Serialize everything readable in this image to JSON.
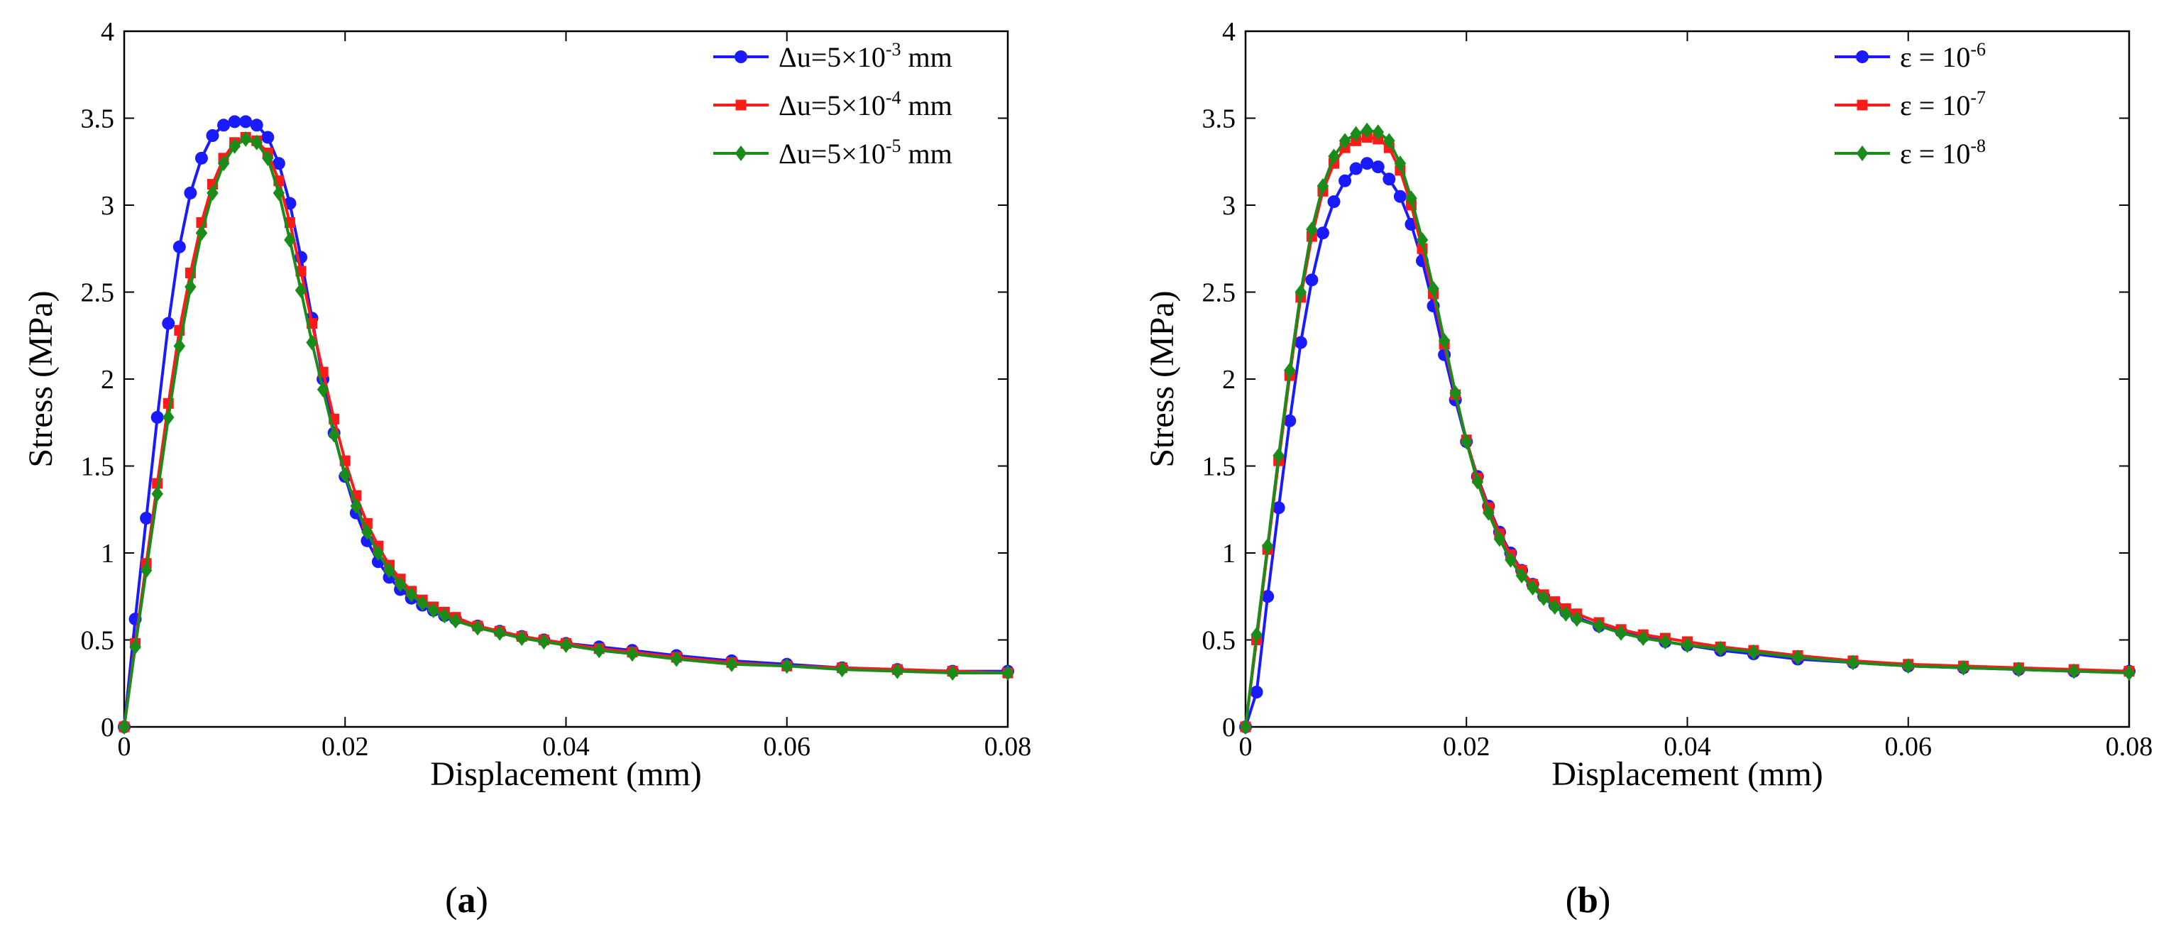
{
  "chart_data": [
    {
      "type": "line",
      "panel_label": "a",
      "xlabel": "Displacement (mm)",
      "ylabel": "Stress (MPa)",
      "xlim": [
        0,
        0.08
      ],
      "ylim": [
        0,
        4
      ],
      "xticks": [
        0,
        0.02,
        0.04,
        0.06,
        0.08
      ],
      "xtick_labels": [
        "0",
        "0.02",
        "0.04",
        "0.06",
        "0.08"
      ],
      "yticks": [
        0,
        0.5,
        1,
        1.5,
        2,
        2.5,
        3,
        3.5,
        4
      ],
      "ytick_labels": [
        "0",
        "0.5",
        "1",
        "1.5",
        "2",
        "2.5",
        "3",
        "3.5",
        "4"
      ],
      "grid": false,
      "legend_position": "top-right",
      "series": [
        {
          "name_base": "Δu=5×10",
          "name_exp": "-3",
          "name_unit": " mm",
          "color": "#1a1aff",
          "marker": "circle",
          "x": [
            0,
            0.001,
            0.002,
            0.003,
            0.004,
            0.005,
            0.006,
            0.007,
            0.008,
            0.009,
            0.01,
            0.011,
            0.012,
            0.013,
            0.014,
            0.015,
            0.016,
            0.017,
            0.018,
            0.019,
            0.02,
            0.021,
            0.022,
            0.023,
            0.024,
            0.025,
            0.026,
            0.027,
            0.028,
            0.029,
            0.03,
            0.032,
            0.034,
            0.036,
            0.038,
            0.04,
            0.043,
            0.046,
            0.05,
            0.055,
            0.06,
            0.065,
            0.07,
            0.075,
            0.08
          ],
          "y": [
            0,
            0.62,
            1.2,
            1.78,
            2.32,
            2.76,
            3.07,
            3.27,
            3.4,
            3.46,
            3.48,
            3.48,
            3.46,
            3.39,
            3.24,
            3.01,
            2.7,
            2.35,
            2.0,
            1.69,
            1.44,
            1.23,
            1.07,
            0.95,
            0.86,
            0.79,
            0.74,
            0.7,
            0.67,
            0.64,
            0.62,
            0.58,
            0.55,
            0.52,
            0.5,
            0.48,
            0.46,
            0.44,
            0.41,
            0.38,
            0.36,
            0.34,
            0.33,
            0.32,
            0.32
          ]
        },
        {
          "name_base": "Δu=5×10",
          "name_exp": "-4",
          "name_unit": " mm",
          "color": "#ff1a1a",
          "marker": "square",
          "x": [
            0,
            0.001,
            0.002,
            0.003,
            0.004,
            0.005,
            0.006,
            0.007,
            0.008,
            0.009,
            0.01,
            0.011,
            0.012,
            0.013,
            0.014,
            0.015,
            0.016,
            0.017,
            0.018,
            0.019,
            0.02,
            0.021,
            0.022,
            0.023,
            0.024,
            0.025,
            0.026,
            0.027,
            0.028,
            0.029,
            0.03,
            0.032,
            0.034,
            0.036,
            0.038,
            0.04,
            0.043,
            0.046,
            0.05,
            0.055,
            0.06,
            0.065,
            0.07,
            0.075,
            0.08
          ],
          "y": [
            0,
            0.48,
            0.94,
            1.4,
            1.86,
            2.28,
            2.61,
            2.9,
            3.12,
            3.27,
            3.36,
            3.39,
            3.37,
            3.3,
            3.14,
            2.9,
            2.62,
            2.32,
            2.04,
            1.77,
            1.53,
            1.33,
            1.17,
            1.04,
            0.93,
            0.85,
            0.78,
            0.73,
            0.69,
            0.66,
            0.63,
            0.58,
            0.55,
            0.52,
            0.5,
            0.48,
            0.45,
            0.43,
            0.4,
            0.37,
            0.35,
            0.34,
            0.33,
            0.32,
            0.31
          ]
        },
        {
          "name_base": "Δu=5×10",
          "name_exp": "-5",
          "name_unit": " mm",
          "color": "#1a8c1a",
          "marker": "diamond",
          "x": [
            0,
            0.001,
            0.002,
            0.003,
            0.004,
            0.005,
            0.006,
            0.007,
            0.008,
            0.009,
            0.01,
            0.011,
            0.012,
            0.013,
            0.014,
            0.015,
            0.016,
            0.017,
            0.018,
            0.019,
            0.02,
            0.021,
            0.022,
            0.023,
            0.024,
            0.025,
            0.026,
            0.027,
            0.028,
            0.029,
            0.03,
            0.032,
            0.034,
            0.036,
            0.038,
            0.04,
            0.043,
            0.046,
            0.05,
            0.055,
            0.06,
            0.065,
            0.07,
            0.075,
            0.08
          ],
          "y": [
            0,
            0.46,
            0.9,
            1.34,
            1.78,
            2.19,
            2.53,
            2.84,
            3.07,
            3.24,
            3.34,
            3.38,
            3.36,
            3.27,
            3.07,
            2.8,
            2.51,
            2.21,
            1.94,
            1.68,
            1.45,
            1.27,
            1.12,
            1.0,
            0.9,
            0.82,
            0.76,
            0.71,
            0.67,
            0.64,
            0.61,
            0.57,
            0.54,
            0.51,
            0.49,
            0.47,
            0.44,
            0.42,
            0.39,
            0.36,
            0.35,
            0.33,
            0.32,
            0.31,
            0.31
          ]
        }
      ]
    },
    {
      "type": "line",
      "panel_label": "b",
      "xlabel": "Displacement (mm)",
      "ylabel": "Stress (MPa)",
      "xlim": [
        0,
        0.08
      ],
      "ylim": [
        0,
        4
      ],
      "xticks": [
        0,
        0.02,
        0.04,
        0.06,
        0.08
      ],
      "xtick_labels": [
        "0",
        "0.02",
        "0.04",
        "0.06",
        "0.08"
      ],
      "yticks": [
        0,
        0.5,
        1,
        1.5,
        2,
        2.5,
        3,
        3.5,
        4
      ],
      "ytick_labels": [
        "0",
        "0.5",
        "1",
        "1.5",
        "2",
        "2.5",
        "3",
        "3.5",
        "4"
      ],
      "grid": false,
      "legend_position": "top-right",
      "series": [
        {
          "name_base": "ε = 10",
          "name_exp": "-6",
          "name_unit": "",
          "color": "#1a1aff",
          "marker": "circle",
          "x": [
            0,
            0.001,
            0.002,
            0.003,
            0.004,
            0.005,
            0.006,
            0.007,
            0.008,
            0.009,
            0.01,
            0.011,
            0.012,
            0.013,
            0.014,
            0.015,
            0.016,
            0.017,
            0.018,
            0.019,
            0.02,
            0.021,
            0.022,
            0.023,
            0.024,
            0.025,
            0.026,
            0.027,
            0.028,
            0.029,
            0.03,
            0.032,
            0.034,
            0.036,
            0.038,
            0.04,
            0.043,
            0.046,
            0.05,
            0.055,
            0.06,
            0.065,
            0.07,
            0.075,
            0.08
          ],
          "y": [
            0,
            0.2,
            0.75,
            1.26,
            1.76,
            2.21,
            2.57,
            2.84,
            3.02,
            3.14,
            3.21,
            3.24,
            3.22,
            3.15,
            3.05,
            2.89,
            2.68,
            2.42,
            2.14,
            1.88,
            1.64,
            1.44,
            1.27,
            1.12,
            1.0,
            0.9,
            0.82,
            0.75,
            0.7,
            0.66,
            0.63,
            0.58,
            0.55,
            0.52,
            0.49,
            0.47,
            0.44,
            0.42,
            0.39,
            0.37,
            0.35,
            0.34,
            0.33,
            0.32,
            0.32
          ]
        },
        {
          "name_base": "ε = 10",
          "name_exp": "-7",
          "name_unit": "",
          "color": "#ff1a1a",
          "marker": "square",
          "x": [
            0,
            0.001,
            0.002,
            0.003,
            0.004,
            0.005,
            0.006,
            0.007,
            0.008,
            0.009,
            0.01,
            0.011,
            0.012,
            0.013,
            0.014,
            0.015,
            0.016,
            0.017,
            0.018,
            0.019,
            0.02,
            0.021,
            0.022,
            0.023,
            0.024,
            0.025,
            0.026,
            0.027,
            0.028,
            0.029,
            0.03,
            0.032,
            0.034,
            0.036,
            0.038,
            0.04,
            0.043,
            0.046,
            0.05,
            0.055,
            0.06,
            0.065,
            0.07,
            0.075,
            0.08
          ],
          "y": [
            0,
            0.5,
            1.02,
            1.53,
            2.02,
            2.47,
            2.82,
            3.08,
            3.24,
            3.33,
            3.37,
            3.39,
            3.38,
            3.33,
            3.2,
            3.0,
            2.75,
            2.49,
            2.2,
            1.91,
            1.65,
            1.43,
            1.26,
            1.11,
            0.99,
            0.9,
            0.82,
            0.76,
            0.72,
            0.68,
            0.65,
            0.6,
            0.56,
            0.53,
            0.51,
            0.49,
            0.46,
            0.44,
            0.41,
            0.38,
            0.36,
            0.35,
            0.34,
            0.33,
            0.32
          ]
        },
        {
          "name_base": "ε = 10",
          "name_exp": "-8",
          "name_unit": "",
          "color": "#1a8c1a",
          "marker": "diamond",
          "x": [
            0,
            0.001,
            0.002,
            0.003,
            0.004,
            0.005,
            0.006,
            0.007,
            0.008,
            0.009,
            0.01,
            0.011,
            0.012,
            0.013,
            0.014,
            0.015,
            0.016,
            0.017,
            0.018,
            0.019,
            0.02,
            0.021,
            0.022,
            0.023,
            0.024,
            0.025,
            0.026,
            0.027,
            0.028,
            0.029,
            0.03,
            0.032,
            0.034,
            0.036,
            0.038,
            0.04,
            0.043,
            0.046,
            0.05,
            0.055,
            0.06,
            0.065,
            0.07,
            0.075,
            0.08
          ],
          "y": [
            0,
            0.53,
            1.04,
            1.56,
            2.05,
            2.5,
            2.86,
            3.11,
            3.28,
            3.37,
            3.41,
            3.43,
            3.42,
            3.37,
            3.24,
            3.04,
            2.8,
            2.52,
            2.22,
            1.92,
            1.64,
            1.41,
            1.23,
            1.08,
            0.96,
            0.87,
            0.8,
            0.74,
            0.69,
            0.65,
            0.62,
            0.58,
            0.54,
            0.51,
            0.49,
            0.47,
            0.45,
            0.43,
            0.4,
            0.37,
            0.35,
            0.34,
            0.33,
            0.32,
            0.31
          ]
        }
      ]
    }
  ]
}
